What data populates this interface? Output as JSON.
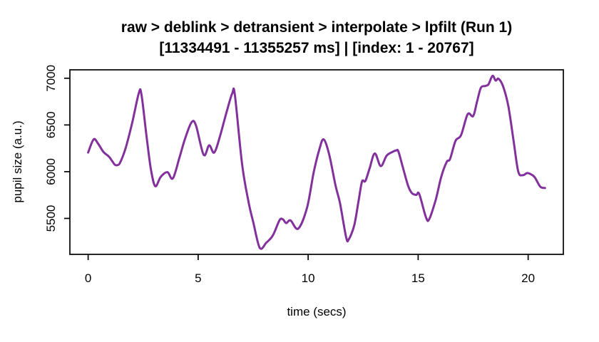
{
  "chart_data": {
    "type": "line",
    "title": "raw > deblink > detransient > interpolate > lpfilt (Run 1)",
    "subtitle": "[11334491 - 11355257 ms] | [index: 1 - 20767]",
    "xlabel": "time (secs)",
    "ylabel": "pupil size (a.u.)",
    "x_ticks": [
      0,
      5,
      10,
      15,
      20
    ],
    "y_ticks": [
      5500,
      6000,
      6500,
      7000
    ],
    "xlim": [
      -0.83,
      21.6
    ],
    "ylim": [
      5115,
      7090
    ],
    "grid": false,
    "legend": "none",
    "line_color": "#82309b",
    "box_color": "#000000",
    "line_width": 3,
    "series": [
      {
        "name": "pupil-size-trace",
        "x": [
          0,
          0.25,
          0.45,
          0.7,
          0.95,
          1.2,
          1.32,
          1.45,
          1.7,
          2.0,
          2.3,
          2.42,
          2.65,
          2.85,
          3.05,
          3.3,
          3.6,
          3.85,
          4.15,
          4.4,
          4.7,
          4.9,
          5.25,
          5.5,
          5.73,
          6.0,
          6.3,
          6.55,
          6.67,
          7.0,
          7.3,
          7.5,
          7.8,
          8.1,
          8.4,
          8.7,
          8.85,
          9.0,
          9.2,
          9.55,
          9.95,
          10.25,
          10.5,
          10.7,
          10.95,
          11.25,
          11.45,
          11.73,
          11.85,
          12.1,
          12.3,
          12.45,
          12.6,
          12.8,
          13.03,
          13.3,
          13.57,
          13.85,
          14.0,
          14.1,
          14.3,
          14.55,
          14.72,
          14.92,
          15.05,
          15.35,
          15.5,
          15.8,
          16.05,
          16.3,
          16.45,
          16.7,
          16.95,
          17.25,
          17.5,
          17.67,
          17.85,
          18.05,
          18.2,
          18.38,
          18.52,
          18.65,
          18.85,
          19.1,
          19.35,
          19.55,
          19.75,
          19.95,
          20.1,
          20.3,
          20.55,
          20.77
        ],
        "y": [
          6205,
          6346,
          6300,
          6210,
          6160,
          6078,
          6070,
          6095,
          6250,
          6520,
          6838,
          6830,
          6385,
          6030,
          5845,
          5945,
          5995,
          5928,
          6150,
          6350,
          6528,
          6495,
          6180,
          6282,
          6205,
          6385,
          6645,
          6838,
          6820,
          6075,
          5665,
          5465,
          5185,
          5240,
          5320,
          5480,
          5490,
          5450,
          5478,
          5390,
          5615,
          5990,
          6230,
          6346,
          6190,
          5846,
          5660,
          5295,
          5277,
          5430,
          5700,
          5895,
          5900,
          6040,
          6195,
          6060,
          6172,
          6213,
          6226,
          6218,
          6050,
          5845,
          5770,
          5752,
          5762,
          5515,
          5490,
          5700,
          5945,
          6105,
          6135,
          6330,
          6390,
          6615,
          6595,
          6744,
          6897,
          6917,
          6936,
          7026,
          6975,
          6995,
          6920,
          6700,
          6310,
          6000,
          5962,
          5985,
          5975,
          5940,
          5840,
          5825
        ]
      }
    ]
  }
}
